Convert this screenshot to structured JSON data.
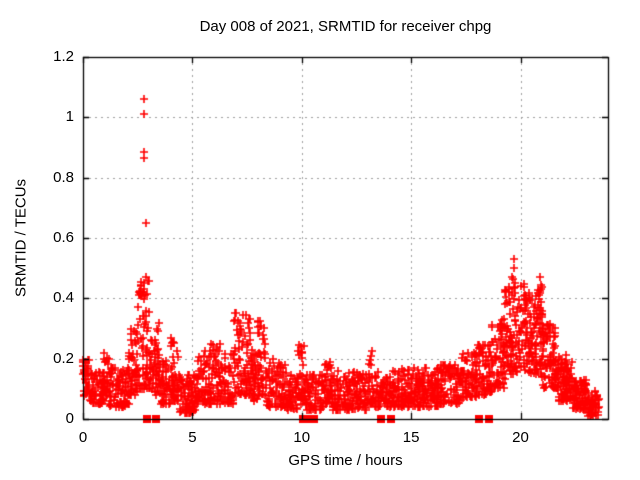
{
  "chart_data": {
    "type": "scatter",
    "title": "Day 008 of 2021, SRMTID for receiver chpg",
    "xlabel": "GPS time / hours",
    "ylabel": "SRMTID / TECUs",
    "xlim": [
      0,
      24
    ],
    "ylim": [
      0,
      1.2
    ],
    "xticks": [
      0,
      5,
      10,
      15,
      20
    ],
    "xtick_labels": [
      "0",
      "5",
      "10",
      "15",
      "20"
    ],
    "yticks": [
      0,
      0.2,
      0.4,
      0.6,
      0.8,
      1.0,
      1.2
    ],
    "ytick_labels": [
      "0",
      "0.2",
      "0.4",
      "0.6",
      "0.8",
      "1",
      "1.2"
    ],
    "grid": true,
    "legend": "none",
    "marker": "plus",
    "marker_color": "#ff0000",
    "grid_color": "#a0a0a0",
    "axis_color": "#000000",
    "background_color": "#ffffff",
    "series_name": "SRMTID",
    "bands_columns": [
      "t_start_h",
      "t_end_h",
      "n_points",
      "v_min_TECU",
      "v_max_TECU",
      "shape_exp"
    ],
    "density_bands": [
      [
        0.0,
        0.3,
        40,
        0.07,
        0.2,
        1.2
      ],
      [
        0.3,
        0.9,
        60,
        0.05,
        0.16,
        1.5
      ],
      [
        0.9,
        1.2,
        35,
        0.06,
        0.22,
        1.5
      ],
      [
        1.2,
        2.1,
        90,
        0.04,
        0.17,
        1.5
      ],
      [
        2.1,
        2.5,
        50,
        0.08,
        0.3,
        1.8
      ],
      [
        2.5,
        3.1,
        75,
        0.1,
        0.47,
        1.6
      ],
      [
        3.1,
        3.5,
        45,
        0.08,
        0.33,
        1.7
      ],
      [
        3.5,
        4.0,
        55,
        0.05,
        0.2,
        1.5
      ],
      [
        4.0,
        4.4,
        45,
        0.06,
        0.27,
        1.7
      ],
      [
        4.4,
        5.2,
        80,
        0.02,
        0.15,
        1.5
      ],
      [
        5.2,
        5.8,
        60,
        0.05,
        0.23,
        1.7
      ],
      [
        5.8,
        6.3,
        55,
        0.05,
        0.25,
        1.7
      ],
      [
        6.3,
        6.9,
        60,
        0.05,
        0.22,
        1.6
      ],
      [
        6.9,
        7.7,
        90,
        0.08,
        0.36,
        1.5
      ],
      [
        7.7,
        8.0,
        35,
        0.06,
        0.25,
        1.5
      ],
      [
        8.0,
        8.4,
        45,
        0.08,
        0.33,
        1.6
      ],
      [
        8.4,
        9.3,
        85,
        0.04,
        0.2,
        1.6
      ],
      [
        9.3,
        9.8,
        50,
        0.03,
        0.15,
        1.5
      ],
      [
        9.8,
        10.15,
        35,
        0.05,
        0.25,
        1.6
      ],
      [
        10.15,
        11.0,
        80,
        0.03,
        0.15,
        1.6
      ],
      [
        11.0,
        11.4,
        40,
        0.05,
        0.19,
        1.6
      ],
      [
        11.4,
        13.0,
        150,
        0.03,
        0.16,
        1.7
      ],
      [
        13.0,
        13.3,
        30,
        0.05,
        0.23,
        1.8
      ],
      [
        13.3,
        14.6,
        120,
        0.04,
        0.16,
        1.6
      ],
      [
        14.6,
        15.5,
        90,
        0.04,
        0.17,
        1.6
      ],
      [
        15.5,
        16.3,
        80,
        0.04,
        0.18,
        1.6
      ],
      [
        16.3,
        17.3,
        95,
        0.05,
        0.18,
        1.5
      ],
      [
        17.3,
        18.0,
        70,
        0.07,
        0.22,
        1.5
      ],
      [
        18.0,
        18.7,
        70,
        0.08,
        0.26,
        1.5
      ],
      [
        18.7,
        19.3,
        65,
        0.1,
        0.33,
        1.5
      ],
      [
        19.3,
        20.2,
        105,
        0.15,
        0.46,
        1.3
      ],
      [
        20.2,
        21.0,
        115,
        0.15,
        0.44,
        1.4
      ],
      [
        21.0,
        21.7,
        95,
        0.1,
        0.32,
        1.4
      ],
      [
        21.7,
        22.4,
        95,
        0.06,
        0.22,
        1.4
      ],
      [
        22.4,
        23.0,
        90,
        0.03,
        0.13,
        1.3
      ],
      [
        23.0,
        23.6,
        50,
        0.01,
        0.1,
        1.2
      ]
    ],
    "outlier_points": [
      [
        2.81,
        1.06
      ],
      [
        2.81,
        1.01
      ],
      [
        2.8,
        0.885
      ],
      [
        2.8,
        0.865
      ],
      [
        2.86,
        0.65
      ],
      [
        2.88,
        0.47
      ],
      [
        2.78,
        0.45
      ],
      [
        19.72,
        0.53
      ],
      [
        19.7,
        0.5
      ],
      [
        19.63,
        0.47
      ],
      [
        19.66,
        0.465
      ],
      [
        19.75,
        0.45
      ],
      [
        20.88,
        0.47
      ],
      [
        20.92,
        0.445
      ],
      [
        20.9,
        0.425
      ],
      [
        20.86,
        0.41
      ]
    ],
    "zero_value_markers": [
      2.93,
      3.34,
      10.05,
      10.32,
      10.58,
      13.6,
      14.1,
      18.08,
      18.55
    ]
  }
}
